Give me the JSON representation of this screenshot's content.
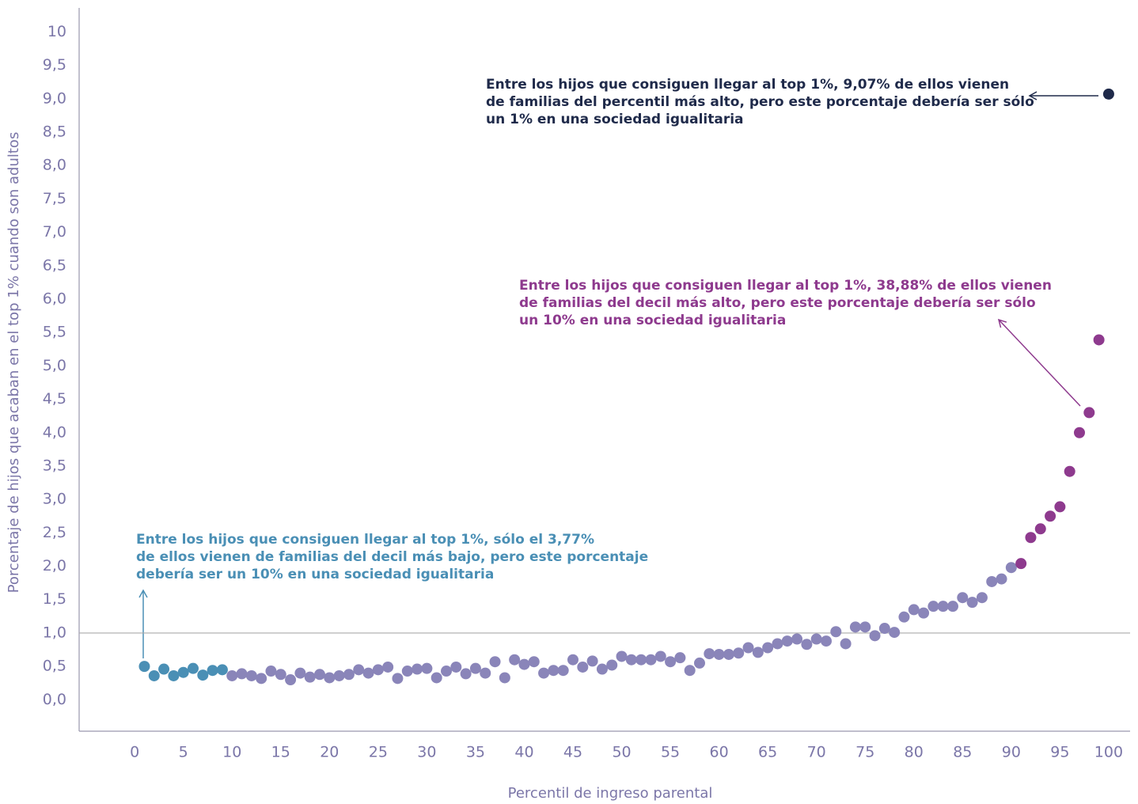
{
  "chart_data": {
    "type": "scatter",
    "x_label": "Percentil de ingreso parental",
    "y_label": "Porcentaje de hijos que acaban en el top 1% cuando son adultos",
    "xlim": [
      -5.7,
      102.2
    ],
    "ylim": [
      -0.47,
      10.36
    ],
    "xticks": [
      0,
      5,
      10,
      15,
      20,
      25,
      30,
      35,
      40,
      45,
      50,
      55,
      60,
      65,
      70,
      75,
      80,
      85,
      90,
      95,
      100
    ],
    "yticks": [
      {
        "value": 0,
        "label": "0,0"
      },
      {
        "value": 0.5,
        "label": "0,5"
      },
      {
        "value": 1,
        "label": "1,0"
      },
      {
        "value": 1.5,
        "label": "1,5"
      },
      {
        "value": 2,
        "label": "2,0"
      },
      {
        "value": 2.5,
        "label": "2,5"
      },
      {
        "value": 3,
        "label": "3,0"
      },
      {
        "value": 3.5,
        "label": "3,5"
      },
      {
        "value": 4,
        "label": "4,0"
      },
      {
        "value": 4.5,
        "label": "4,5"
      },
      {
        "value": 5,
        "label": "5,0"
      },
      {
        "value": 5.5,
        "label": "5,5"
      },
      {
        "value": 6,
        "label": "6,0"
      },
      {
        "value": 6.5,
        "label": "6,5"
      },
      {
        "value": 7,
        "label": "7,0"
      },
      {
        "value": 7.5,
        "label": "7,5"
      },
      {
        "value": 8,
        "label": "8,0"
      },
      {
        "value": 8.5,
        "label": "8,5"
      },
      {
        "value": 9,
        "label": "9,0"
      },
      {
        "value": 9.5,
        "label": "9,5"
      },
      10
    ],
    "reference_line": 1,
    "series": [
      {
        "color": "#4a8fb5",
        "x": [
          1,
          2,
          3,
          4,
          5,
          6,
          7,
          8,
          9
        ],
        "values": [
          0.5,
          0.36,
          0.46,
          0.36,
          0.41,
          0.47,
          0.37,
          0.44,
          0.45
        ]
      },
      {
        "color": "#8a85b9",
        "x": [
          10,
          11,
          12,
          13,
          14,
          15,
          16,
          17,
          18,
          19,
          20,
          21,
          22,
          23,
          24,
          25,
          26,
          27,
          28,
          29,
          30,
          31,
          32,
          33,
          34,
          35,
          36,
          37,
          38,
          39,
          40,
          41,
          42,
          43,
          44,
          45,
          46,
          47,
          48,
          49,
          50,
          51,
          52,
          53,
          54,
          55,
          56,
          57,
          58,
          59,
          60,
          61,
          62,
          63,
          64,
          65,
          66,
          67,
          68,
          69,
          70,
          71,
          72,
          73,
          74,
          75,
          76,
          77,
          78,
          79,
          80,
          81,
          82,
          83,
          84,
          85,
          86,
          87,
          88,
          89,
          90
        ],
        "values": [
          0.36,
          0.39,
          0.36,
          0.32,
          0.43,
          0.38,
          0.3,
          0.4,
          0.34,
          0.38,
          0.33,
          0.36,
          0.38,
          0.45,
          0.4,
          0.45,
          0.49,
          0.32,
          0.43,
          0.46,
          0.47,
          0.33,
          0.43,
          0.49,
          0.39,
          0.47,
          0.4,
          0.57,
          0.33,
          0.6,
          0.53,
          0.57,
          0.4,
          0.44,
          0.44,
          0.6,
          0.49,
          0.58,
          0.46,
          0.52,
          0.65,
          0.6,
          0.6,
          0.6,
          0.65,
          0.57,
          0.63,
          0.44,
          0.55,
          0.69,
          0.68,
          0.68,
          0.7,
          0.78,
          0.71,
          0.78,
          0.84,
          0.88,
          0.91,
          0.83,
          0.91,
          0.88,
          1.02,
          0.84,
          1.09,
          1.09,
          0.96,
          1.07,
          1.01,
          1.24,
          1.35,
          1.3,
          1.4,
          1.4,
          1.4,
          1.53,
          1.46,
          1.53,
          1.77,
          1.81,
          1.98
        ]
      },
      {
        "color": "#8e3a8e",
        "x": [
          91,
          92,
          93,
          94,
          95,
          96,
          97,
          98,
          99
        ],
        "values": [
          2.04,
          2.43,
          2.56,
          2.75,
          2.89,
          3.42,
          4.0,
          4.3,
          5.39
        ]
      },
      {
        "color": "#1f2a4a",
        "x": [
          100
        ],
        "values": [
          9.07
        ]
      }
    ],
    "annotations": [
      {
        "color": "#1f2a4a",
        "lines": [
          "Entre los hijos que consiguen llegar al top 1%, 9,07% de ellos vienen",
          "de familias del percentil más alto, pero este porcentaje debería ser sólo",
          "un 1% en una sociedad igualitaria"
        ]
      },
      {
        "color": "#8e3a8e",
        "lines": [
          "Entre los hijos que consiguen llegar al top 1%, 38,88% de ellos vienen",
          "de familias del decil más alto, pero este porcentaje debería ser sólo",
          "un 10% en una sociedad igualitaria"
        ]
      },
      {
        "color": "#4a8fb5",
        "lines": [
          "Entre los hijos que consiguen llegar al top 1%, sólo el 3,77%",
          "de ellos vienen de familias del decil más bajo, pero este porcentaje",
          "debería ser un 10% en una sociedad igualitaria"
        ]
      }
    ]
  }
}
